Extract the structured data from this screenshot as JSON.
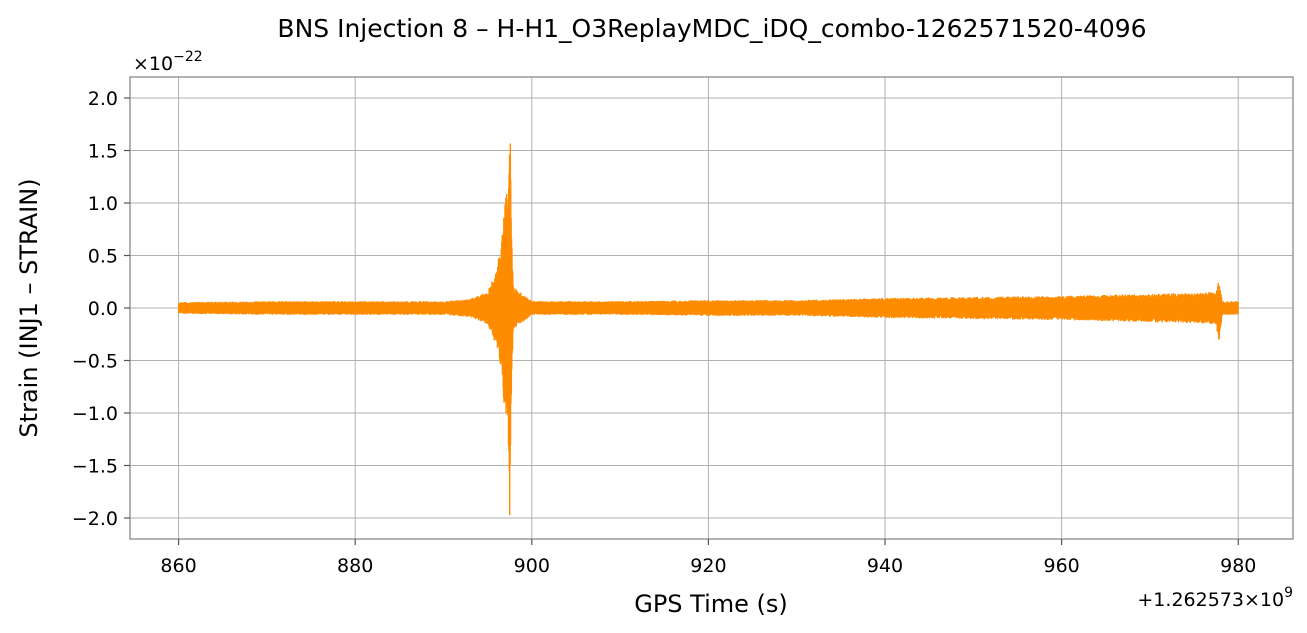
{
  "chart_data": {
    "type": "line",
    "title": "BNS Injection 8 – H-H1_O3ReplayMDC_iDQ_combo-1262571520-4096",
    "xlabel": "GPS Time (s)",
    "ylabel": "Strain (INJ1 – STRAIN)",
    "x_offset_label": "+1.262573×10",
    "x_offset_exp": "9",
    "y_scale_label": "×10",
    "y_scale_exp": "−22",
    "xlim": [
      854.5,
      986.2
    ],
    "ylim": [
      -2.2,
      2.2
    ],
    "x_ticks": [
      860,
      880,
      900,
      920,
      940,
      960,
      980
    ],
    "x_tick_labels": [
      "860",
      "880",
      "900",
      "920",
      "940",
      "960",
      "980"
    ],
    "y_ticks": [
      -2.0,
      -1.5,
      -1.0,
      -0.5,
      0.0,
      0.5,
      1.0,
      1.5,
      2.0
    ],
    "y_tick_labels": [
      "−2.0",
      "−1.5",
      "−1.0",
      "−0.5",
      "0.0",
      "0.5",
      "1.0",
      "1.5",
      "2.0"
    ],
    "grid": true,
    "color": "#ff8c00",
    "series": [
      {
        "envelope_x": [
          860,
          870,
          880,
          890,
          893,
          895,
          896,
          896.5,
          897,
          897.3,
          897.5,
          897.7,
          897.9,
          900,
          910,
          920,
          930,
          940,
          950,
          960,
          970,
          975,
          977.5,
          977.8,
          978.2,
          980
        ],
        "envelope_max": [
          0.05,
          0.06,
          0.06,
          0.06,
          0.08,
          0.15,
          0.35,
          0.6,
          1.05,
          1.15,
          1.97,
          0.8,
          0.2,
          0.06,
          0.06,
          0.07,
          0.07,
          0.09,
          0.1,
          0.11,
          0.13,
          0.14,
          0.15,
          0.26,
          0.06,
          0.06
        ],
        "envelope_min": [
          -0.05,
          -0.06,
          -0.06,
          -0.06,
          -0.08,
          -0.15,
          -0.35,
          -0.6,
          -1.05,
          -1.1,
          -2.02,
          -0.8,
          -0.2,
          -0.06,
          -0.06,
          -0.07,
          -0.07,
          -0.09,
          -0.1,
          -0.11,
          -0.13,
          -0.14,
          -0.15,
          -0.33,
          -0.06,
          -0.06
        ]
      }
    ]
  }
}
